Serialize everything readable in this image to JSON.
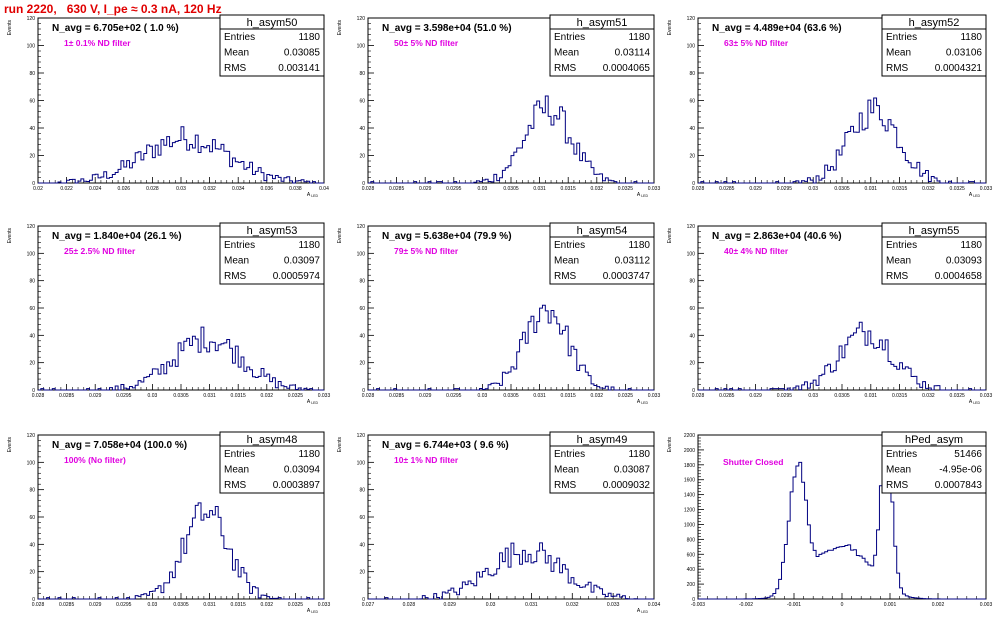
{
  "title": "run 2220,   630 V, I_pe ≈ 0.3 nA, 120 Hz",
  "colors": {
    "hist": "#000080",
    "title": "#e00000",
    "label": "#e000e0"
  },
  "chart_data": [
    {
      "type": "histogram",
      "name": "h_asym50",
      "header": "N_avg = 6.705e+02 ( 1.0 %)",
      "label": "1± 0.1% ND filter",
      "stats": {
        "Entries": "1180",
        "Mean": "0.03085",
        "RMS": "0.003141"
      },
      "xlabel": "A_LED",
      "ylabel": "Events",
      "xlim": [
        0.02,
        0.041
      ],
      "ylim": [
        0,
        120
      ],
      "xticks": [
        "0.02",
        "0.022",
        "0.024",
        "0.026",
        "0.028",
        "0.03",
        "0.032",
        "0.034",
        "0.036",
        "0.038",
        "0.04"
      ],
      "yticks": [
        "0",
        "20",
        "40",
        "60",
        "80",
        "100",
        "120"
      ],
      "mean": 0.03085,
      "rms": 0.003141,
      "peak": 40
    },
    {
      "type": "histogram",
      "name": "h_asym51",
      "header": "N_avg = 3.598e+04 (51.0 %)",
      "label": "50± 5% ND filter",
      "stats": {
        "Entries": "1180",
        "Mean": "0.03114",
        "RMS": "0.0004065"
      },
      "xlabel": "A_LED",
      "ylabel": "Events",
      "xlim": [
        0.028,
        0.033
      ],
      "ylim": [
        0,
        120
      ],
      "xticks": [
        "0.028",
        "0.0285",
        "0.029",
        "0.0295",
        "0.03",
        "0.0305",
        "0.031",
        "0.0315",
        "0.032",
        "0.0325",
        "0.033"
      ],
      "yticks": [
        "0",
        "20",
        "40",
        "60",
        "80",
        "100",
        "120"
      ],
      "mean": 0.03114,
      "rms": 0.0004065,
      "peak": 66
    },
    {
      "type": "histogram",
      "name": "h_asym52",
      "header": "N_avg = 4.489e+04 (63.6 %)",
      "label": "63± 5% ND filter",
      "stats": {
        "Entries": "1180",
        "Mean": "0.03106",
        "RMS": "0.0004321"
      },
      "xlabel": "A_LED",
      "ylabel": "Events",
      "xlim": [
        0.028,
        0.033
      ],
      "ylim": [
        0,
        120
      ],
      "xticks": [
        "0.028",
        "0.0285",
        "0.029",
        "0.0295",
        "0.03",
        "0.0305",
        "0.031",
        "0.0315",
        "0.032",
        "0.0325",
        "0.033"
      ],
      "yticks": [
        "0",
        "20",
        "40",
        "60",
        "80",
        "100",
        "120"
      ],
      "mean": 0.03106,
      "rms": 0.0004321,
      "peak": 65
    },
    {
      "type": "histogram",
      "name": "h_asym53",
      "header": "N_avg = 1.840e+04 (26.1 %)",
      "label": "25± 2.5% ND filter",
      "stats": {
        "Entries": "1180",
        "Mean": "0.03097",
        "RMS": "0.0005974"
      },
      "xlabel": "A_LED",
      "ylabel": "Events",
      "xlim": [
        0.028,
        0.033
      ],
      "ylim": [
        0,
        120
      ],
      "xticks": [
        "0.028",
        "0.0285",
        "0.029",
        "0.0295",
        "0.03",
        "0.0305",
        "0.031",
        "0.0315",
        "0.032",
        "0.0325",
        "0.033"
      ],
      "yticks": [
        "0",
        "20",
        "40",
        "60",
        "80",
        "100",
        "120"
      ],
      "mean": 0.03097,
      "rms": 0.0005974,
      "peak": 46
    },
    {
      "type": "histogram",
      "name": "h_asym54",
      "header": "N_avg = 5.638e+04 (79.9 %)",
      "label": "79± 5% ND filter",
      "stats": {
        "Entries": "1180",
        "Mean": "0.03112",
        "RMS": "0.0003747"
      },
      "xlabel": "A_LED",
      "ylabel": "Events",
      "xlim": [
        0.028,
        0.033
      ],
      "ylim": [
        0,
        120
      ],
      "xticks": [
        "0.028",
        "0.0285",
        "0.029",
        "0.0295",
        "0.03",
        "0.0305",
        "0.031",
        "0.0315",
        "0.032",
        "0.0325",
        "0.033"
      ],
      "yticks": [
        "0",
        "20",
        "40",
        "60",
        "80",
        "100",
        "120"
      ],
      "mean": 0.03112,
      "rms": 0.0003747,
      "peak": 73
    },
    {
      "type": "histogram",
      "name": "h_asym55",
      "header": "N_avg = 2.863e+04 (40.6 %)",
      "label": "40± 4% ND filter",
      "stats": {
        "Entries": "1180",
        "Mean": "0.03093",
        "RMS": "0.0004658"
      },
      "xlabel": "A_LED",
      "ylabel": "Events",
      "xlim": [
        0.028,
        0.033
      ],
      "ylim": [
        0,
        120
      ],
      "xticks": [
        "0.028",
        "0.0285",
        "0.029",
        "0.0295",
        "0.03",
        "0.0305",
        "0.031",
        "0.0315",
        "0.032",
        "0.0325",
        "0.033"
      ],
      "yticks": [
        "0",
        "20",
        "40",
        "60",
        "80",
        "100",
        "120"
      ],
      "mean": 0.03093,
      "rms": 0.0004658,
      "peak": 52
    },
    {
      "type": "histogram",
      "name": "h_asym48",
      "header": "N_avg = 7.058e+04 (100.0 %)",
      "label": "100% (No filter)",
      "stats": {
        "Entries": "1180",
        "Mean": "0.03094",
        "RMS": "0.0003897"
      },
      "xlabel": "A_LED",
      "ylabel": "Events",
      "xlim": [
        0.028,
        0.033
      ],
      "ylim": [
        0,
        120
      ],
      "xticks": [
        "0.028",
        "0.0285",
        "0.029",
        "0.0295",
        "0.03",
        "0.0305",
        "0.031",
        "0.0315",
        "0.032",
        "0.0325",
        "0.033"
      ],
      "yticks": [
        "0",
        "20",
        "40",
        "60",
        "80",
        "100",
        "120"
      ],
      "mean": 0.03094,
      "rms": 0.0003897,
      "peak": 77
    },
    {
      "type": "histogram",
      "name": "h_asym49",
      "header": "N_avg = 6.744e+03 ( 9.6 %)",
      "label": "10± 1% ND filter",
      "stats": {
        "Entries": "1180",
        "Mean": "0.03087",
        "RMS": "0.0009032"
      },
      "xlabel": "A_LED",
      "ylabel": "Events",
      "xlim": [
        0.027,
        0.034
      ],
      "ylim": [
        0,
        120
      ],
      "xticks": [
        "0.027",
        "0.028",
        "0.029",
        "0.03",
        "0.031",
        "0.032",
        "0.033",
        "0.034"
      ],
      "yticks": [
        "0",
        "20",
        "40",
        "60",
        "80",
        "100",
        "120"
      ],
      "mean": 0.03087,
      "rms": 0.0009032,
      "peak": 43
    },
    {
      "type": "histogram",
      "name": "hPed_asym",
      "header": "",
      "label": "Shutter Closed",
      "stats": {
        "Entries": "51466",
        "Mean": "-4.95e-06",
        "RMS": "0.0007843"
      },
      "xlabel": "",
      "ylabel": "Events",
      "xlim": [
        -0.003,
        0.003
      ],
      "ylim": [
        0,
        2400
      ],
      "xticks": [
        "-0.003",
        "-0.002",
        "-0.001",
        "0",
        "0.001",
        "0.002",
        "0.003"
      ],
      "yticks": [
        "0",
        "200",
        "400",
        "600",
        "800",
        "1000",
        "1200",
        "1400",
        "1600",
        "1800",
        "2000",
        "2200"
      ],
      "mean": -4.95e-06,
      "rms": 0.0007843,
      "peaks": [
        {
          "x": -0.00093,
          "y": 1790,
          "s": 0.00018
        },
        {
          "x": 0.00093,
          "y": 2170,
          "s": 0.00012
        },
        {
          "x": 0,
          "y": 800,
          "s": 0.00055
        }
      ]
    }
  ]
}
